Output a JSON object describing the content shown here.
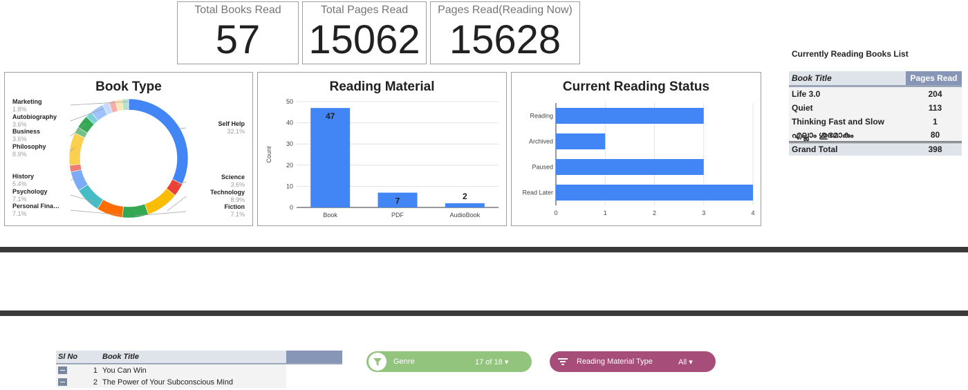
{
  "kpis": [
    {
      "label": "Total Books Read",
      "value": "57"
    },
    {
      "label": "Total Pages Read",
      "value": "15062"
    },
    {
      "label": "Pages Read(Reading Now)",
      "value": "15628"
    }
  ],
  "current_list": {
    "title": "Currently Reading Books List",
    "col_title": "Book Title",
    "col_pages": "Pages Read",
    "rows": [
      {
        "title": "Life 3.0",
        "pages": "204"
      },
      {
        "title": "Quiet",
        "pages": "113"
      },
      {
        "title": "Thinking Fast and Slow",
        "pages": "1"
      },
      {
        "title": "എല്ലാം ശുഭമാകും",
        "pages": "80"
      }
    ],
    "total_label": "Grand Total",
    "total_value": "398"
  },
  "bottom_table": {
    "col_no": "Sl No",
    "col_title": "Book Title",
    "rows": [
      {
        "no": "1",
        "title": "You Can Win"
      },
      {
        "no": "2",
        "title": "The Power of Your Subconscious Mind"
      }
    ]
  },
  "filters": {
    "genre": {
      "label": "Genre",
      "value": "17 of 18 ▾"
    },
    "material": {
      "label": "Reading Material Type",
      "value": "All ▾"
    }
  },
  "chart_data": [
    {
      "type": "pie",
      "title": "Book Type",
      "donut": true,
      "slices": [
        {
          "label": "Self Help",
          "pct_label": "32.1%",
          "value": 32.1,
          "color": "#4285f4"
        },
        {
          "label": "Science",
          "pct_label": "3.6%",
          "value": 3.6,
          "color": "#ea4335"
        },
        {
          "label": "Technology",
          "pct_label": "8.9%",
          "value": 8.9,
          "color": "#fbbc04"
        },
        {
          "label": "Fiction",
          "pct_label": "7.1%",
          "value": 7.1,
          "color": "#34a853"
        },
        {
          "label": "Personal Fina…",
          "pct_label": "7.1%",
          "value": 7.1,
          "color": "#ff6d01"
        },
        {
          "label": "Psychology",
          "pct_label": "7.1%",
          "value": 7.1,
          "color": "#46bdc6"
        },
        {
          "label": "History",
          "pct_label": "5.4%",
          "value": 5.4,
          "color": "#7baaf7"
        },
        {
          "label": "",
          "pct_label": "",
          "value": 1.8,
          "color": "#f07b72"
        },
        {
          "label": "Philosophy",
          "pct_label": "8.9%",
          "value": 8.9,
          "color": "#fcd04f"
        },
        {
          "label": "",
          "pct_label": "",
          "value": 1.8,
          "color": "#71c287"
        },
        {
          "label": "Business",
          "pct_label": "3.6%",
          "value": 3.6,
          "color": "#34a853"
        },
        {
          "label": "",
          "pct_label": "",
          "value": 1.8,
          "color": "#7ed1d7"
        },
        {
          "label": "Autobiography",
          "pct_label": "3.6%",
          "value": 3.6,
          "color": "#a0c3ff"
        },
        {
          "label": "",
          "pct_label": "",
          "value": 1.8,
          "color": "#c6dafc"
        },
        {
          "label": "",
          "pct_label": "",
          "value": 1.8,
          "color": "#f6aea9"
        },
        {
          "label": "",
          "pct_label": "",
          "value": 1.8,
          "color": "#fce8b2"
        },
        {
          "label": "Marketing",
          "pct_label": "1.8%",
          "value": 1.8,
          "color": "#b7e1cd"
        }
      ]
    },
    {
      "type": "bar",
      "title": "Reading Material",
      "categories": [
        "Book",
        "PDF",
        "AudioBook"
      ],
      "values": [
        47,
        7,
        2
      ],
      "ylabel": "Count",
      "ylim": [
        0,
        50
      ],
      "yticks": [
        0,
        10,
        20,
        30,
        40,
        50
      ],
      "color": "#4285f4"
    },
    {
      "type": "bar",
      "orientation": "horizontal",
      "title": "Current Reading Status",
      "categories": [
        "Reading",
        "Archived",
        "Paused",
        "Read Later"
      ],
      "values": [
        3,
        1,
        3,
        4
      ],
      "xlim": [
        0,
        4
      ],
      "xticks": [
        0,
        1,
        2,
        3,
        4
      ],
      "color": "#4285f4"
    }
  ]
}
